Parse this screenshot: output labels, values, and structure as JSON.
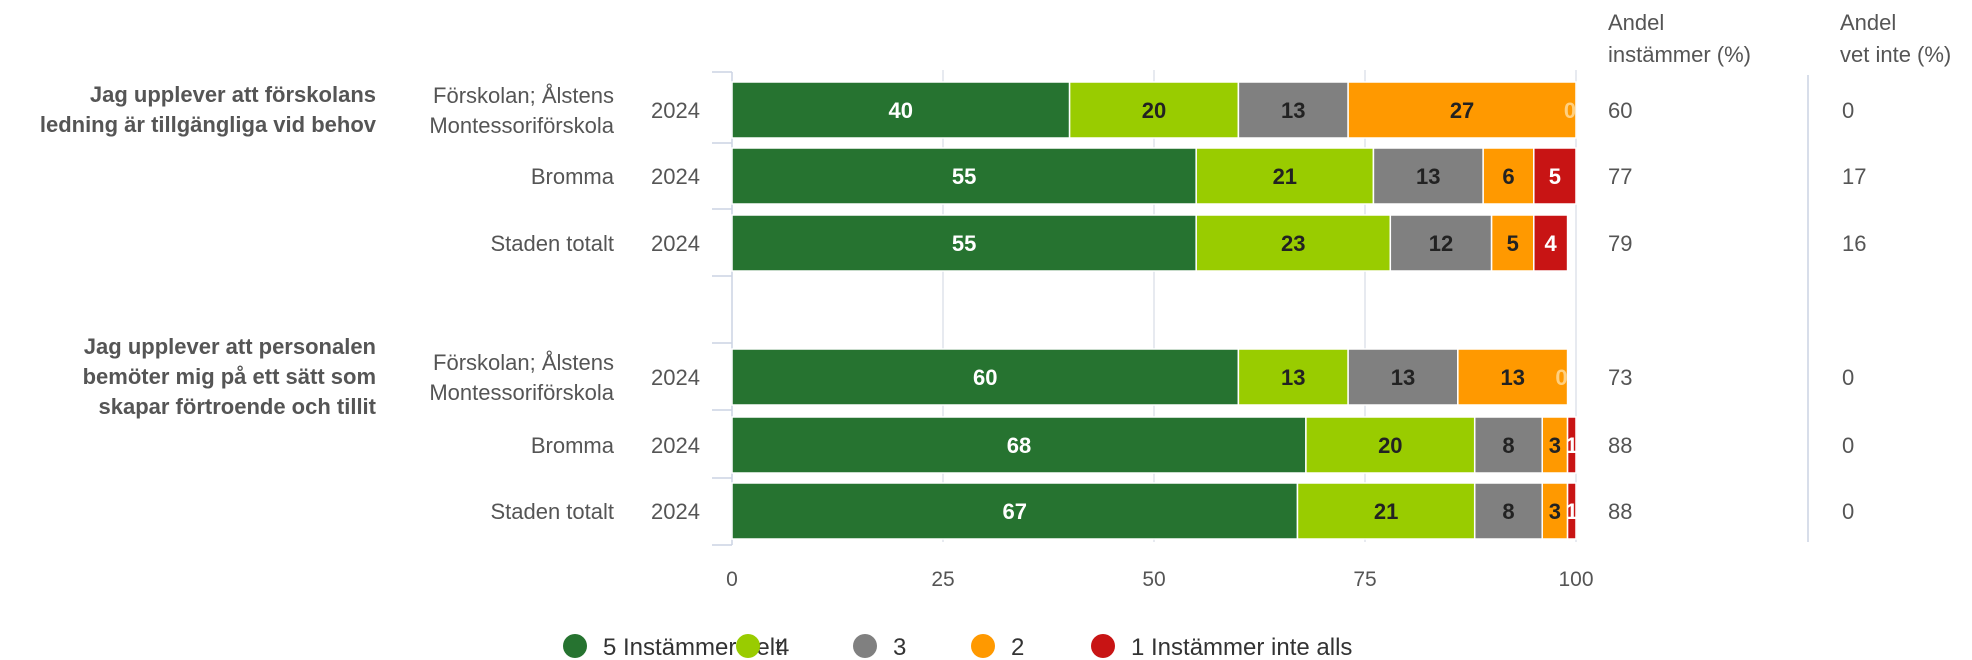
{
  "chart_data": {
    "type": "bar",
    "orientation": "horizontal",
    "stacked": true,
    "xlim": [
      0,
      100
    ],
    "xticks": [
      "0",
      "25",
      "50",
      "75",
      "100"
    ],
    "col_headers": {
      "agree": [
        "Andel",
        "instämmer (%)"
      ],
      "dontknow": [
        "Andel",
        "vet inte (%)"
      ]
    },
    "colors": [
      "#267330",
      "#99cc00",
      "#808080",
      "#ff9900",
      "#c81414"
    ],
    "label_colors": [
      "#ffffff",
      "#222222",
      "#222222",
      "#222222",
      "#ffffff"
    ],
    "legend": [
      "5 Instämmer helt",
      "4",
      "3",
      "2",
      "1 Instämmer inte alls"
    ],
    "groups": [
      {
        "question": [
          "Jag upplever att förskolans",
          "ledning är tillgängliga vid behov"
        ],
        "rows": [
          {
            "label": [
              "Förskolan; Ålstens",
              "Montessoriförskola"
            ],
            "year": "2024",
            "values": [
              40,
              20,
              13,
              27,
              0
            ],
            "agree": "60",
            "dontknow": "0"
          },
          {
            "label": [
              "Bromma"
            ],
            "year": "2024",
            "values": [
              55,
              21,
              13,
              6,
              5
            ],
            "agree": "77",
            "dontknow": "17"
          },
          {
            "label": [
              "Staden totalt"
            ],
            "year": "2024",
            "values": [
              55,
              23,
              12,
              5,
              4
            ],
            "agree": "79",
            "dontknow": "16"
          }
        ]
      },
      {
        "question": [
          "Jag upplever att personalen",
          "bemöter mig på ett sätt som",
          "skapar förtroende och tillit"
        ],
        "rows": [
          {
            "label": [
              "Förskolan; Ålstens",
              "Montessoriförskola"
            ],
            "year": "2024",
            "values": [
              60,
              13,
              13,
              13,
              0
            ],
            "agree": "73",
            "dontknow": "0"
          },
          {
            "label": [
              "Bromma"
            ],
            "year": "2024",
            "values": [
              68,
              20,
              8,
              3,
              1
            ],
            "agree": "88",
            "dontknow": "0"
          },
          {
            "label": [
              "Staden totalt"
            ],
            "year": "2024",
            "values": [
              67,
              21,
              8,
              3,
              1
            ],
            "agree": "88",
            "dontknow": "0"
          }
        ]
      }
    ]
  }
}
